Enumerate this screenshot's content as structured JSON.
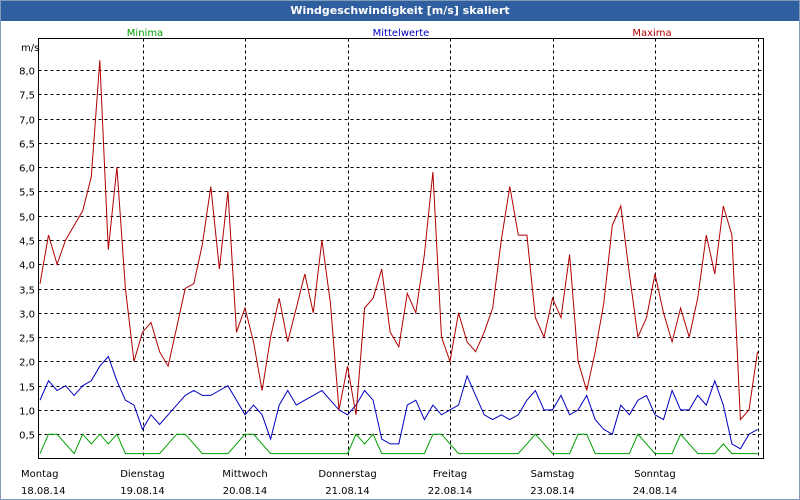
{
  "window": {
    "title": "Windgeschwindigkeit [m/s] skaliert"
  },
  "chart_data": {
    "type": "line",
    "title": "Windgeschwindigkeit [m/s] skaliert",
    "ylabel": "m/s",
    "ylim": [
      0,
      8.5
    ],
    "y_ticks": [
      "0,5",
      "1,0",
      "1,5",
      "2,0",
      "2,5",
      "3,0",
      "3,5",
      "4,0",
      "4,5",
      "5,0",
      "5,5",
      "6,0",
      "6,5",
      "7,0",
      "7,5",
      "8,0"
    ],
    "x_label_days": [
      "Montag",
      "Dienstag",
      "Mittwoch",
      "Donnerstag",
      "Freitag",
      "Samstag",
      "Sonntag"
    ],
    "x_label_dates": [
      "18.08.14",
      "19.08.14",
      "20.08.14",
      "21.08.14",
      "22.08.14",
      "23.08.14",
      "24.08.14"
    ],
    "grid": true,
    "legend_position": "top",
    "series": [
      {
        "name": "Minima",
        "color": "#00a000",
        "hours": [
          0,
          2,
          4,
          6,
          8,
          10,
          12,
          14,
          16,
          18,
          20,
          22,
          24,
          26,
          28,
          30,
          32,
          34,
          36,
          38,
          40,
          42,
          44,
          46,
          48,
          50,
          52,
          54,
          56,
          58,
          60,
          62,
          64,
          66,
          68,
          70,
          72,
          74,
          76,
          78,
          80,
          82,
          84,
          86,
          88,
          90,
          92,
          94,
          96,
          98,
          100,
          102,
          104,
          106,
          108,
          110,
          112,
          114,
          116,
          118,
          120,
          122,
          124,
          126,
          128,
          130,
          132,
          134,
          136,
          138,
          140,
          142,
          144,
          146,
          148,
          150,
          152,
          154,
          156,
          158,
          160,
          162,
          164,
          166,
          168
        ],
        "values": [
          0.1,
          0.5,
          0.5,
          0.3,
          0.1,
          0.5,
          0.3,
          0.5,
          0.3,
          0.5,
          0.1,
          0.1,
          0.1,
          0.1,
          0.1,
          0.3,
          0.5,
          0.5,
          0.3,
          0.1,
          0.1,
          0.1,
          0.1,
          0.3,
          0.5,
          0.5,
          0.3,
          0.1,
          0.1,
          0.1,
          0.1,
          0.1,
          0.1,
          0.1,
          0.1,
          0.1,
          0.1,
          0.5,
          0.3,
          0.5,
          0.1,
          0.1,
          0.1,
          0.1,
          0.1,
          0.1,
          0.5,
          0.5,
          0.3,
          0.1,
          0.1,
          0.1,
          0.1,
          0.1,
          0.1,
          0.1,
          0.1,
          0.3,
          0.5,
          0.3,
          0.1,
          0.1,
          0.1,
          0.5,
          0.5,
          0.1,
          0.1,
          0.1,
          0.1,
          0.1,
          0.5,
          0.3,
          0.1,
          0.1,
          0.1,
          0.5,
          0.3,
          0.1,
          0.1,
          0.1,
          0.3,
          0.1,
          0.1,
          0.1,
          0.1
        ],
        "_": null
      },
      {
        "name": "Mittelwerte",
        "color": "#0000c0",
        "hours": [
          0,
          2,
          4,
          6,
          8,
          10,
          12,
          14,
          16,
          18,
          20,
          22,
          24,
          26,
          28,
          30,
          32,
          34,
          36,
          38,
          40,
          42,
          44,
          46,
          48,
          50,
          52,
          54,
          56,
          58,
          60,
          62,
          64,
          66,
          68,
          70,
          72,
          74,
          76,
          78,
          80,
          82,
          84,
          86,
          88,
          90,
          92,
          94,
          96,
          98,
          100,
          102,
          104,
          106,
          108,
          110,
          112,
          114,
          116,
          118,
          120,
          122,
          124,
          126,
          128,
          130,
          132,
          134,
          136,
          138,
          140,
          142,
          144,
          146,
          148,
          150,
          152,
          154,
          156,
          158,
          160,
          162,
          164,
          166,
          168
        ],
        "values": [
          1.2,
          1.6,
          1.4,
          1.5,
          1.3,
          1.5,
          1.6,
          1.9,
          2.1,
          1.6,
          1.2,
          1.1,
          0.6,
          0.9,
          0.7,
          0.9,
          1.1,
          1.3,
          1.4,
          1.3,
          1.3,
          1.4,
          1.5,
          1.2,
          0.9,
          1.1,
          0.9,
          0.4,
          1.1,
          1.4,
          1.1,
          1.2,
          1.3,
          1.4,
          1.2,
          1.0,
          0.9,
          1.1,
          1.4,
          1.2,
          0.4,
          0.3,
          0.3,
          1.1,
          1.2,
          0.8,
          1.1,
          0.9,
          1.0,
          1.1,
          1.7,
          1.3,
          0.9,
          0.8,
          0.9,
          0.8,
          0.9,
          1.2,
          1.4,
          1.0,
          1.0,
          1.3,
          0.9,
          1.0,
          1.3,
          0.8,
          0.6,
          0.5,
          1.1,
          0.9,
          1.2,
          1.3,
          0.9,
          0.8,
          1.4,
          1.0,
          1.0,
          1.3,
          1.1,
          1.6,
          1.1,
          0.3,
          0.2,
          0.5,
          0.6
        ],
        "_": null
      },
      {
        "name": "Maxima",
        "color": "#b00000",
        "hours": [
          0,
          2,
          4,
          6,
          8,
          10,
          12,
          14,
          16,
          18,
          20,
          22,
          24,
          26,
          28,
          30,
          32,
          34,
          36,
          38,
          40,
          42,
          44,
          46,
          48,
          50,
          52,
          54,
          56,
          58,
          60,
          62,
          64,
          66,
          68,
          70,
          72,
          74,
          76,
          78,
          80,
          82,
          84,
          86,
          88,
          90,
          92,
          94,
          96,
          98,
          100,
          102,
          104,
          106,
          108,
          110,
          112,
          114,
          116,
          118,
          120,
          122,
          124,
          126,
          128,
          130,
          132,
          134,
          136,
          138,
          140,
          142,
          144,
          146,
          148,
          150,
          152,
          154,
          156,
          158,
          160,
          162,
          164,
          166,
          168
        ],
        "values": [
          3.6,
          4.6,
          4.0,
          4.5,
          4.8,
          5.1,
          5.8,
          8.2,
          4.3,
          6.0,
          3.5,
          2.0,
          2.6,
          2.8,
          2.2,
          1.9,
          2.7,
          3.5,
          3.6,
          4.4,
          5.6,
          3.9,
          5.5,
          2.6,
          3.1,
          2.4,
          1.4,
          2.5,
          3.3,
          2.4,
          3.1,
          3.8,
          3.0,
          4.5,
          3.2,
          1.0,
          1.9,
          0.9,
          3.1,
          3.3,
          3.9,
          2.6,
          2.3,
          3.4,
          3.0,
          4.2,
          5.9,
          2.5,
          2.0,
          3.0,
          2.4,
          2.2,
          2.6,
          3.1,
          4.5,
          5.6,
          4.6,
          4.6,
          2.9,
          2.5,
          3.3,
          2.9,
          4.2,
          2.0,
          1.4,
          2.2,
          3.2,
          4.8,
          5.2,
          3.8,
          2.5,
          2.9,
          3.8,
          3.0,
          2.4,
          3.1,
          2.5,
          3.3,
          4.6,
          3.8,
          5.2,
          4.6,
          0.8,
          1.0,
          2.2
        ],
        "_": null
      }
    ]
  }
}
